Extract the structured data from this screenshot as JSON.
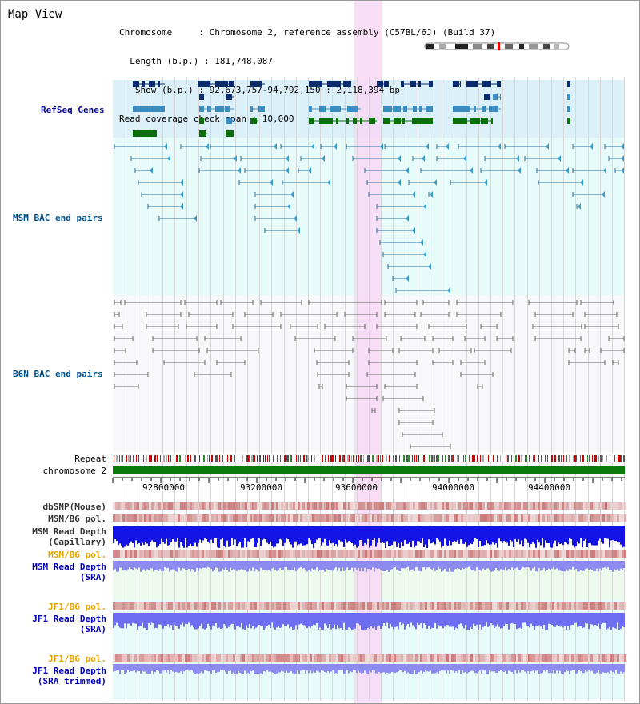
{
  "header": {
    "title": "Map View",
    "info_lines": [
      "Chromosome     : Chromosome 2, reference assembly (C57BL/6J) (Build 37)",
      "  Length (b.p.) : 181,748,087",
      "   Show (b.p.) : 92,673,757-94,792,150 : 2,118,394 bp",
      "Read coverage check span : 10,000"
    ]
  },
  "tracks": {
    "refseq": "RefSeq Genes",
    "msm_bac": "MSM BAC end pairs",
    "b6n_bac": "B6N BAC end pairs",
    "repeat": "Repeat",
    "chromosome": "chromosome 2",
    "dbsnp": "dbSNP(Mouse)",
    "msm_b6_pol_1": "MSM/B6 pol.",
    "msm_depth_cap_1": "MSM Read Depth",
    "msm_depth_cap_2": "(Capillary)",
    "msm_b6_pol_2": "MSM/B6 pol.",
    "msm_depth_sra_1": "MSM Read Depth",
    "msm_depth_sra_2": "(SRA)",
    "jf1_b6_pol_1": "JF1/B6 pol.",
    "jf1_depth_sra_1": "JF1 Read Depth",
    "jf1_depth_sra_2": "(SRA)",
    "jf1_b6_pol_2": "JF1/B6 pol.",
    "jf1_depth_trim_1": "JF1 Read Depth",
    "jf1_depth_trim_2": "(SRA trimmed)"
  },
  "axis": {
    "ticks": [
      "92800000",
      "93200000",
      "93600000",
      "94000000",
      "94400000"
    ]
  },
  "colors": {
    "refseq_bg": "#dcf0fa",
    "msm_bac_bg": "#e6fafa",
    "b6n_bac_bg": "#f8f8fc",
    "highlight": "#f8d8f4",
    "gene_dark": "#0a2c6e",
    "gene_mid": "#3c8cc0",
    "gene_green": "#0a6e0a",
    "chromosome_bar": "#0a780a",
    "msm_label": "#00508c",
    "refseq_label": "#000096",
    "orange_label": "#e6a000",
    "blue_label": "#0000b4"
  }
}
